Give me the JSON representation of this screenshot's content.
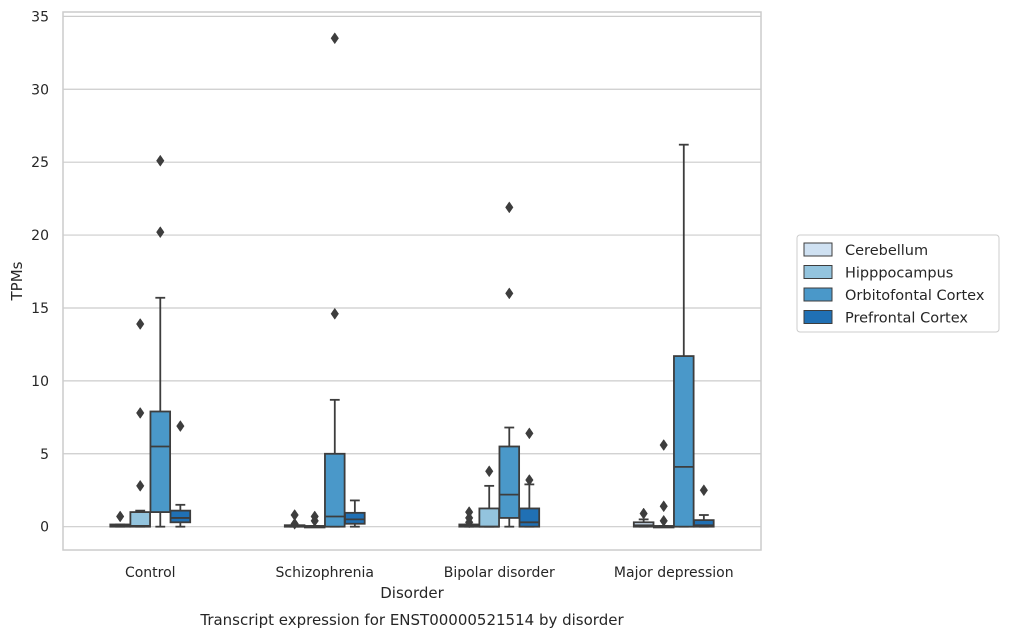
{
  "chart_data": {
    "type": "box",
    "title": "",
    "caption": "Transcript expression for ENST00000521514 by disorder",
    "xlabel": "Disorder",
    "ylabel": "TPMs",
    "ylim": [
      -1.6,
      35.3
    ],
    "yticks": [
      0,
      5,
      10,
      15,
      20,
      25,
      30,
      35
    ],
    "grid": "horizontal",
    "legend_position": "right",
    "categories": [
      "Control",
      "Schizophrenia",
      "Bipolar disorder",
      "Major depression"
    ],
    "series": [
      {
        "name": "Cerebellum",
        "color": "#cfe1f2",
        "boxes": [
          {
            "q1": 0.0,
            "median": 0.05,
            "q3": 0.15,
            "whisker_low": 0.0,
            "whisker_high": 0.15,
            "outliers": [
              0.7
            ]
          },
          {
            "q1": 0.0,
            "median": 0.03,
            "q3": 0.1,
            "whisker_low": 0.0,
            "whisker_high": 0.1,
            "outliers": [
              0.2,
              0.8
            ]
          },
          {
            "q1": 0.0,
            "median": 0.05,
            "q3": 0.15,
            "whisker_low": 0.0,
            "whisker_high": 0.15,
            "outliers": [
              0.3,
              0.6,
              1.0
            ]
          },
          {
            "q1": 0.0,
            "median": 0.1,
            "q3": 0.3,
            "whisker_low": 0.0,
            "whisker_high": 0.5,
            "outliers": [
              0.9
            ]
          }
        ]
      },
      {
        "name": "Hipppocampus",
        "color": "#93c4de",
        "boxes": [
          {
            "q1": 0.0,
            "median": 0.05,
            "q3": 1.0,
            "whisker_low": 0.0,
            "whisker_high": 1.1,
            "outliers": [
              2.8,
              7.8,
              13.9
            ]
          },
          {
            "q1": 0.0,
            "median": 0.0,
            "q3": 0.05,
            "whisker_low": 0.0,
            "whisker_high": 0.05,
            "outliers": [
              0.4,
              0.7
            ]
          },
          {
            "q1": 0.0,
            "median": 0.0,
            "q3": 1.25,
            "whisker_low": 0.0,
            "whisker_high": 2.8,
            "outliers": [
              3.8
            ]
          },
          {
            "q1": 0.0,
            "median": 0.0,
            "q3": 0.05,
            "whisker_low": 0.0,
            "whisker_high": 0.05,
            "outliers": [
              0.4,
              1.4,
              5.6
            ]
          }
        ]
      },
      {
        "name": "Orbitofontal Cortex",
        "color": "#4a98c9",
        "boxes": [
          {
            "q1": 1.0,
            "median": 5.5,
            "q3": 7.9,
            "whisker_low": 0.0,
            "whisker_high": 15.7,
            "outliers": [
              20.2,
              25.1
            ]
          },
          {
            "q1": 0.0,
            "median": 0.7,
            "q3": 5.0,
            "whisker_low": 0.0,
            "whisker_high": 8.7,
            "outliers": [
              14.6,
              33.5
            ]
          },
          {
            "q1": 0.6,
            "median": 2.2,
            "q3": 5.5,
            "whisker_low": 0.0,
            "whisker_high": 6.8,
            "outliers": [
              16.0,
              21.9
            ]
          },
          {
            "q1": 0.0,
            "median": 4.1,
            "q3": 11.7,
            "whisker_low": 0.0,
            "whisker_high": 26.2,
            "outliers": []
          }
        ]
      },
      {
        "name": "Prefrontal Cortex",
        "color": "#2070b4",
        "boxes": [
          {
            "q1": 0.3,
            "median": 0.6,
            "q3": 1.1,
            "whisker_low": 0.0,
            "whisker_high": 1.5,
            "outliers": [
              6.9
            ]
          },
          {
            "q1": 0.2,
            "median": 0.5,
            "q3": 0.95,
            "whisker_low": 0.0,
            "whisker_high": 1.8,
            "outliers": []
          },
          {
            "q1": 0.0,
            "median": 0.3,
            "q3": 1.25,
            "whisker_low": 0.0,
            "whisker_high": 2.9,
            "outliers": [
              3.2,
              6.4
            ]
          },
          {
            "q1": 0.0,
            "median": 0.1,
            "q3": 0.45,
            "whisker_low": 0.0,
            "whisker_high": 0.8,
            "outliers": [
              2.5
            ]
          }
        ]
      }
    ]
  }
}
